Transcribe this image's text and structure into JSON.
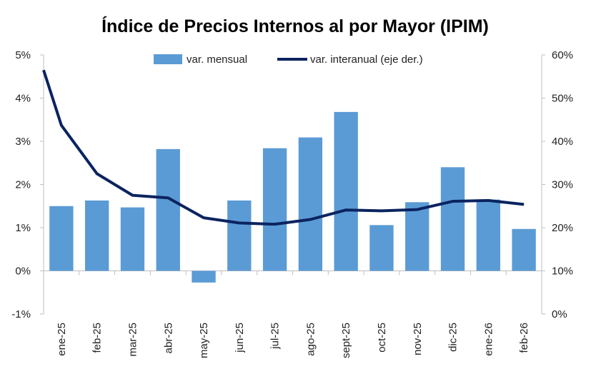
{
  "chart_data": {
    "type": "bar+line",
    "title": "Índice de Precios Internos al por Mayor (IPIM)",
    "categories": [
      "ene-25",
      "feb-25",
      "mar-25",
      "abr-25",
      "may-25",
      "jun-25",
      "jul-25",
      "ago-25",
      "sept-25",
      "oct-25",
      "nov-25",
      "dic-25",
      "ene-26",
      "feb-26"
    ],
    "series": [
      {
        "name": "var. mensual",
        "type": "bar",
        "axis": "left",
        "color": "#5b9bd5",
        "values": [
          1.5,
          1.63,
          1.47,
          2.82,
          -0.27,
          1.63,
          2.84,
          3.09,
          3.68,
          1.06,
          1.59,
          2.4,
          1.65,
          0.97
        ]
      },
      {
        "name": "var. interanual (eje der.)",
        "type": "line",
        "axis": "right",
        "color": "#0b2460",
        "start_value": 56.5,
        "values": [
          43.7,
          32.5,
          27.5,
          26.9,
          22.3,
          21.1,
          20.8,
          21.9,
          24.1,
          23.9,
          24.2,
          26.1,
          26.3,
          25.4
        ]
      }
    ],
    "y_left": {
      "ylim": [
        -1,
        5
      ],
      "ticks": [
        -1,
        0,
        1,
        2,
        3,
        4,
        5
      ],
      "tick_labels": [
        "-1%",
        "0%",
        "1%",
        "2%",
        "3%",
        "4%",
        "5%"
      ]
    },
    "y_right": {
      "ylim": [
        0,
        60
      ],
      "ticks": [
        0,
        10,
        20,
        30,
        40,
        50,
        60
      ],
      "tick_labels": [
        "0%",
        "10%",
        "20%",
        "30%",
        "40%",
        "50%",
        "60%"
      ]
    },
    "legend": {
      "placement": "top-center"
    },
    "grid": false
  }
}
